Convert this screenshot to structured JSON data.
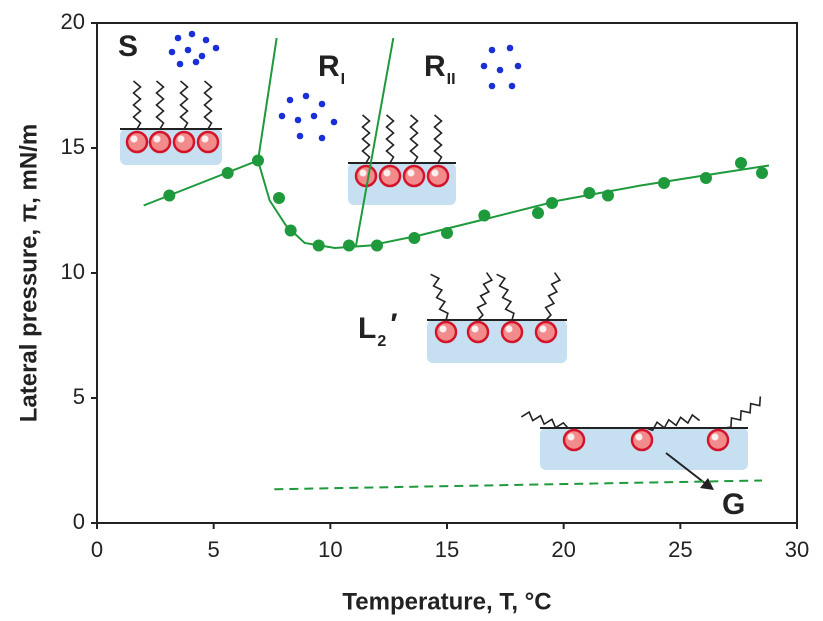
{
  "chart_data": {
    "type": "scatter",
    "x_label": "Temperature, T, °C",
    "y_label": "Lateral pressure, π, mN/m",
    "xlim": [
      0,
      30
    ],
    "xticks": [
      0,
      5,
      10,
      15,
      20,
      25,
      30
    ],
    "ylim": [
      0,
      20
    ],
    "yticks": [
      0,
      5,
      10,
      15,
      20
    ],
    "series": [
      {
        "mode": "markers",
        "color": "#1e9a3c",
        "x": [
          3.1,
          5.6,
          6.9,
          7.8,
          8.3,
          9.5,
          10.8,
          12.0,
          13.6,
          15.0,
          16.6,
          18.9,
          19.5,
          21.1,
          21.9,
          24.3,
          26.1,
          27.6,
          28.5
        ],
        "values": [
          13.1,
          14.0,
          14.5,
          13.0,
          11.7,
          11.1,
          11.1,
          11.1,
          11.4,
          11.6,
          12.3,
          12.4,
          12.8,
          13.2,
          13.1,
          13.6,
          13.8,
          14.4,
          14.0
        ]
      },
      {
        "mode": "line",
        "color": "#1e9a3c",
        "x": [
          2.0,
          6.9
        ],
        "values": [
          12.7,
          14.5
        ]
      },
      {
        "mode": "line",
        "color": "#1e9a3c",
        "x": [
          6.9,
          7.4,
          8.1,
          8.9,
          10.2,
          11.7,
          13.8,
          16.4,
          19.8,
          23.3,
          26.7,
          28.8
        ],
        "values": [
          14.5,
          12.9,
          11.9,
          11.2,
          11.0,
          11.1,
          11.5,
          12.1,
          12.9,
          13.5,
          14.0,
          14.3
        ]
      },
      {
        "mode": "line",
        "color": "#1e9a3c",
        "x": [
          6.9,
          7.7
        ],
        "values": [
          14.5,
          19.4
        ]
      },
      {
        "mode": "line",
        "color": "#1e9a3c",
        "x": [
          11.1,
          12.7
        ],
        "values": [
          11.1,
          19.4
        ]
      },
      {
        "mode": "line",
        "dash": true,
        "color": "#1e9a3c",
        "x": [
          7.6,
          28.5
        ],
        "values": [
          1.35,
          1.7
        ]
      }
    ],
    "annotations": [
      {
        "text": "S"
      },
      {
        "text": "R",
        "sub": "I"
      },
      {
        "text": "R",
        "sub": "II"
      },
      {
        "text": "L",
        "sub": "2",
        "mark": "′"
      },
      {
        "text": "G"
      }
    ]
  }
}
